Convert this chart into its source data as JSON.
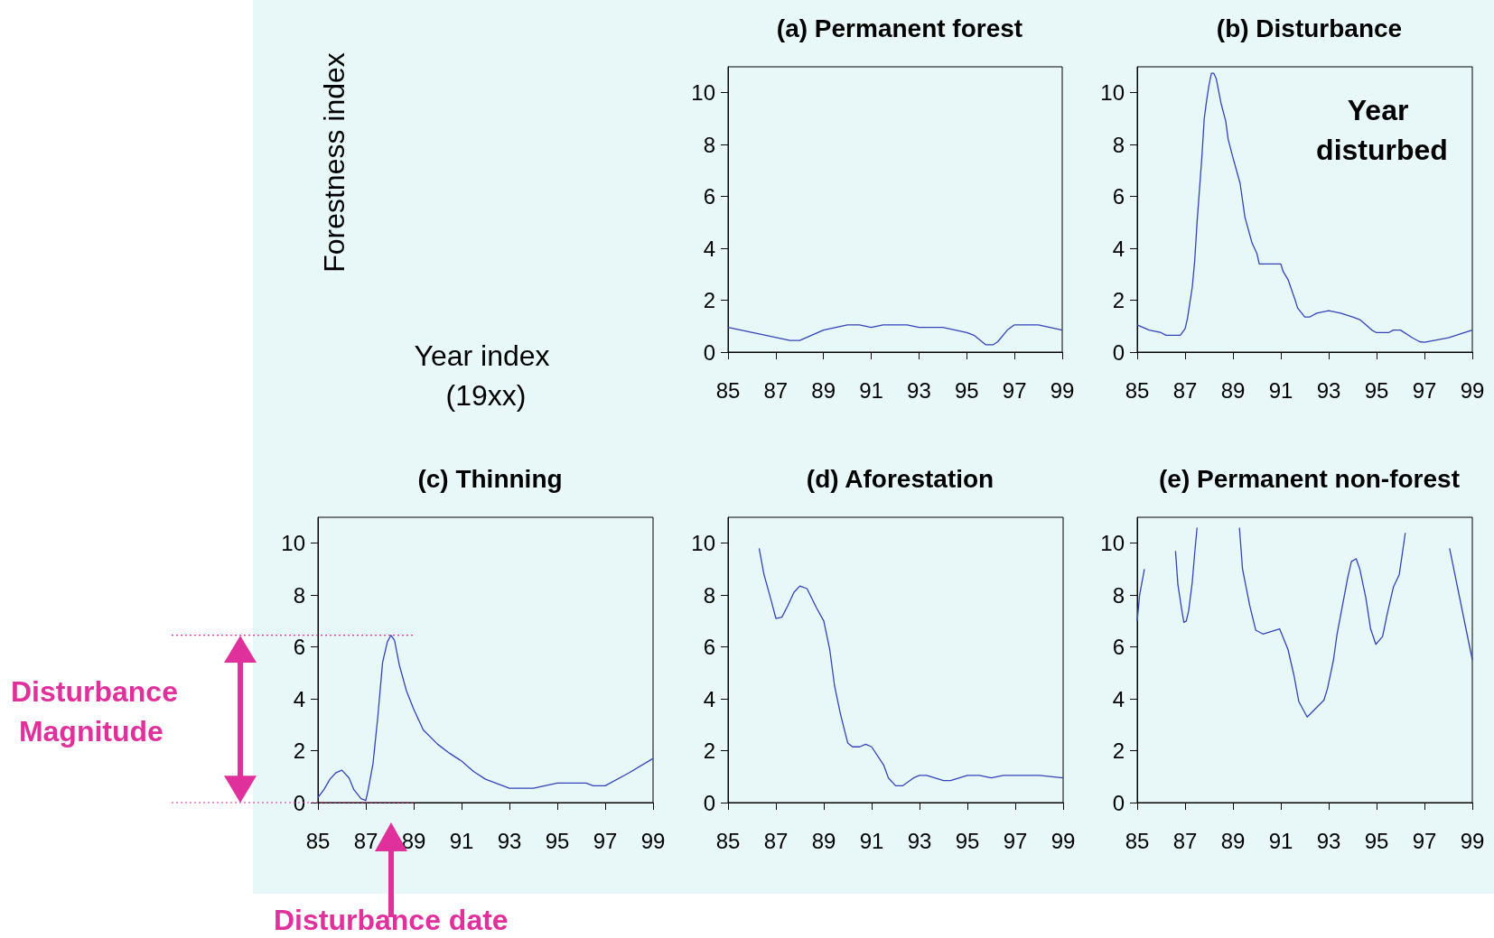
{
  "chart_data": [
    {
      "type": "line",
      "title": "(a) Permanent forest",
      "ylabel": "Forestness index",
      "xlabel": "Year index (19xx)",
      "color": "#3344bb",
      "marker": "none",
      "grid": false,
      "x": [
        85,
        87.6,
        88,
        89,
        90,
        90.5,
        91,
        91.5,
        92.5,
        93,
        94,
        95,
        95.3,
        95.8,
        96.1,
        96.3,
        96.7,
        97,
        98,
        99
      ],
      "values": [
        0.95,
        0.45,
        0.45,
        0.85,
        1.05,
        1.05,
        0.95,
        1.05,
        1.05,
        0.95,
        0.95,
        0.75,
        0.65,
        0.28,
        0.28,
        0.4,
        0.85,
        1.05,
        1.05,
        0.85
      ],
      "xlim": [
        85,
        99
      ],
      "xticks": [
        85,
        87,
        89,
        91,
        93,
        95,
        97,
        99
      ],
      "ylim": [
        0,
        11
      ],
      "yticks": [
        0,
        2,
        4,
        6,
        8,
        10
      ]
    },
    {
      "type": "line",
      "title": "(b) Disturbance",
      "annotations": [
        "Year disturbed"
      ],
      "color": "#3344bb",
      "marker": "none",
      "grid": false,
      "x": [
        85,
        85.5,
        86,
        86.2,
        86.8,
        87,
        87.1,
        87.3,
        87.4,
        87.5,
        87.7,
        87.8,
        87.9,
        88,
        88.1,
        88.2,
        88.3,
        88.5,
        88.7,
        88.8,
        89,
        89.3,
        89.5,
        89.8,
        90,
        90.1,
        91,
        91.1,
        91.3,
        91.6,
        91.7,
        92,
        92.2,
        92.5,
        93,
        93.5,
        94,
        94.3,
        94.5,
        94.8,
        95,
        95.5,
        95.7,
        96,
        96.5,
        96.8,
        97,
        98,
        99
      ],
      "values": [
        1.05,
        0.85,
        0.75,
        0.65,
        0.65,
        0.9,
        1.3,
        2.5,
        3.5,
        5,
        7.5,
        9,
        9.7,
        10.3,
        10.75,
        10.75,
        10.55,
        9.6,
        8.9,
        8.2,
        7.5,
        6.5,
        5.2,
        4.2,
        3.8,
        3.4,
        3.4,
        3.1,
        2.8,
        2,
        1.7,
        1.35,
        1.35,
        1.5,
        1.6,
        1.5,
        1.35,
        1.25,
        1.1,
        0.85,
        0.75,
        0.75,
        0.85,
        0.85,
        0.55,
        0.4,
        0.38,
        0.55,
        0.85
      ],
      "xlim": [
        85,
        99
      ],
      "xticks": [
        85,
        87,
        89,
        91,
        93,
        95,
        97,
        99
      ],
      "ylim": [
        0,
        11
      ],
      "yticks": [
        0,
        2,
        4,
        6,
        8,
        10
      ]
    },
    {
      "type": "line",
      "title": "(c) Thinning",
      "annotations": [
        "Disturbance Magnitude",
        "Disturbance date"
      ],
      "color": "#3344bb",
      "marker": "none",
      "grid": false,
      "ref_lines": [
        {
          "axis": "y",
          "value": 6.45,
          "color": "#e0309c",
          "line_style": "dotted"
        },
        {
          "axis": "y",
          "value": 0,
          "color": "#e0309c",
          "line_style": "dotted"
        }
      ],
      "x": [
        85,
        85.25,
        85.5,
        85.75,
        86,
        86.3,
        86.5,
        86.8,
        87,
        87.1,
        87.3,
        87.5,
        87.7,
        87.9,
        88.05,
        88.2,
        88.4,
        88.7,
        89,
        89.4,
        90,
        90.5,
        91,
        91.5,
        92,
        93,
        94,
        95,
        96.2,
        96.5,
        97,
        98,
        99
      ],
      "values": [
        0.2,
        0.5,
        0.9,
        1.15,
        1.25,
        0.95,
        0.5,
        0.15,
        0.08,
        0.5,
        1.5,
        3.3,
        5.4,
        6.2,
        6.45,
        6.25,
        5.3,
        4.3,
        3.6,
        2.8,
        2.25,
        1.9,
        1.6,
        1.2,
        0.9,
        0.55,
        0.55,
        0.75,
        0.75,
        0.65,
        0.65,
        1.15,
        1.7
      ],
      "xlim": [
        85,
        99
      ],
      "xticks": [
        85,
        87,
        89,
        91,
        93,
        95,
        97,
        99
      ],
      "ylim": [
        0,
        11
      ],
      "yticks": [
        0,
        2,
        4,
        6,
        8,
        10
      ]
    },
    {
      "type": "line",
      "title": "(d) Aforestation",
      "color": "#3344bb",
      "marker": "none",
      "grid": false,
      "x": [
        86.3,
        86.5,
        86.8,
        87,
        87.25,
        87.5,
        87.75,
        88,
        88.3,
        88.7,
        89,
        89.25,
        89.45,
        89.7,
        90,
        90.2,
        90.5,
        90.75,
        91,
        91.5,
        91.7,
        92,
        92.3,
        92.75,
        93,
        93.3,
        94,
        94.3,
        95,
        95.5,
        96,
        96.5,
        98,
        99
      ],
      "values": [
        9.8,
        8.8,
        7.8,
        7.1,
        7.15,
        7.6,
        8.1,
        8.35,
        8.25,
        7.5,
        7,
        5.9,
        4.5,
        3.4,
        2.3,
        2.15,
        2.15,
        2.25,
        2.15,
        1.45,
        0.95,
        0.65,
        0.65,
        0.95,
        1.05,
        1.05,
        0.85,
        0.85,
        1.05,
        1.05,
        0.95,
        1.05,
        1.05,
        0.95
      ],
      "xlim": [
        85,
        99
      ],
      "xticks": [
        85,
        87,
        89,
        91,
        93,
        95,
        97,
        99
      ],
      "ylim": [
        0,
        11
      ],
      "yticks": [
        0,
        2,
        4,
        6,
        8,
        10
      ]
    },
    {
      "type": "line",
      "title": "(e) Permanent non-forest",
      "color": "#3344bb",
      "marker": "none",
      "grid": false,
      "x": [
        85,
        85.1,
        85.3,
        85.45,
        86,
        86.35,
        86.6,
        86.7,
        86.85,
        86.95,
        87.05,
        87.15,
        87.3,
        87.4,
        87.5,
        87.55,
        88,
        89.05,
        89.27,
        89.4,
        89.7,
        89.95,
        90.25,
        90.95,
        91.3,
        91.55,
        91.75,
        92.1,
        92.8,
        92.95,
        93.2,
        93.35,
        93.8,
        93.95,
        94.15,
        94.3,
        94.55,
        94.75,
        94.97,
        95.25,
        95.45,
        95.7,
        95.95,
        96.2,
        96.35,
        97,
        97.7,
        98.05,
        99
      ],
      "values": [
        7,
        8,
        9,
        null,
        null,
        null,
        9.7,
        8.4,
        7.5,
        6.95,
        7,
        7.4,
        8.5,
        9.6,
        10.6,
        null,
        null,
        null,
        10.6,
        9,
        7.6,
        6.65,
        6.5,
        6.7,
        5.9,
        4.9,
        3.9,
        3.3,
        3.95,
        4.4,
        5.5,
        6.5,
        8.7,
        9.3,
        9.4,
        9,
        7.9,
        6.7,
        6.1,
        6.4,
        7.3,
        8.3,
        8.8,
        10.4,
        null,
        null,
        null,
        9.8,
        5.5
      ],
      "xlim": [
        85,
        99
      ],
      "xticks": [
        85,
        87,
        89,
        91,
        93,
        95,
        97,
        99
      ],
      "ylim": [
        0,
        11
      ],
      "yticks": [
        0,
        2,
        4,
        6,
        8,
        10
      ]
    }
  ]
}
